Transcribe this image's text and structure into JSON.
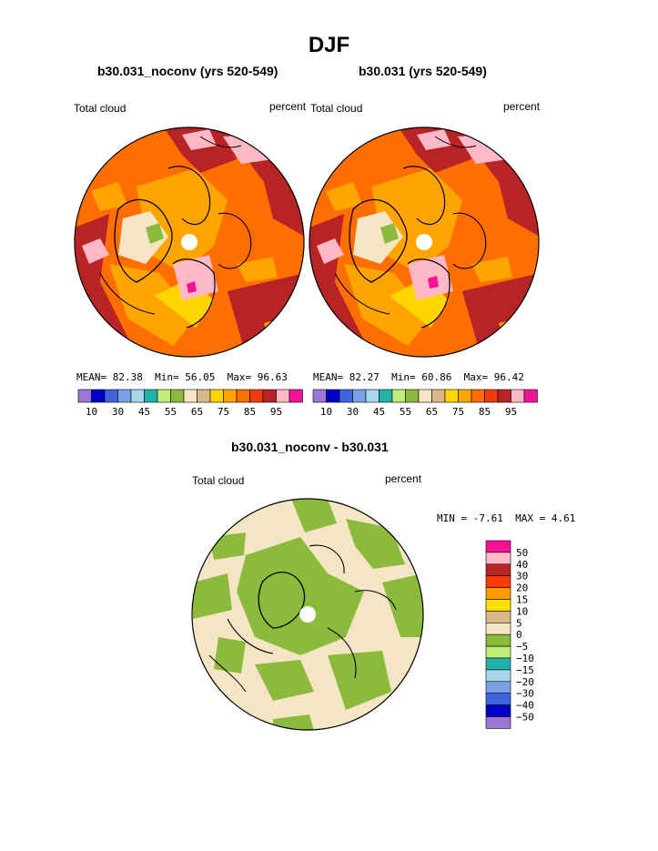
{
  "title": "DJF",
  "left_panel": {
    "title": "b30.031_noconv (yrs 520-549)",
    "variable": "Total cloud",
    "units": "percent",
    "stats": {
      "mean_label": "MEAN=",
      "mean": "82.38",
      "min_label": "Min=",
      "min": "56.05",
      "max_label": "Max=",
      "max": "96.63"
    }
  },
  "right_panel": {
    "title": "b30.031 (yrs 520-549)",
    "variable": "Total cloud",
    "units": "percent",
    "stats": {
      "mean_label": "MEAN=",
      "mean": "82.27",
      "min_label": "Min=",
      "min": "60.86",
      "max_label": "Max=",
      "max": "96.42"
    }
  },
  "colorbar_top": {
    "colors": [
      "#9a76d8",
      "#0000c8",
      "#3f66e0",
      "#7ba0e8",
      "#a9d8ea",
      "#22b2aa",
      "#c0ee7a",
      "#8cba3c",
      "#f4e6c4",
      "#d9b88a",
      "#ffd500",
      "#ffa400",
      "#ff6e00",
      "#f03c10",
      "#b62426",
      "#ffb8c6",
      "#f31196"
    ],
    "labels": [
      "10",
      "30",
      "45",
      "55",
      "65",
      "75",
      "85",
      "95"
    ]
  },
  "diff_panel": {
    "title": "b30.031_noconv - b30.031",
    "variable": "Total cloud",
    "units": "percent",
    "stats": {
      "min_label": "MIN =",
      "min": "-7.61",
      "max_label": "MAX =",
      "max": "4.61"
    }
  },
  "colorbar_diff": {
    "colors_top_to_bottom": [
      "#f31196",
      "#ffb8c6",
      "#b62426",
      "#ff3a00",
      "#ff9a00",
      "#ffe000",
      "#d9b88a",
      "#f4e6c4",
      "#8cba3c",
      "#c0ee7a",
      "#22b2aa",
      "#a9d8ea",
      "#7ba0e8",
      "#3f66e0",
      "#0000c8",
      "#9a76d8"
    ],
    "labels": [
      "50",
      "40",
      "30",
      "20",
      "15",
      "10",
      "5",
      "0",
      "−5",
      "−10",
      "−15",
      "−20",
      "−30",
      "−40",
      "−50"
    ]
  }
}
